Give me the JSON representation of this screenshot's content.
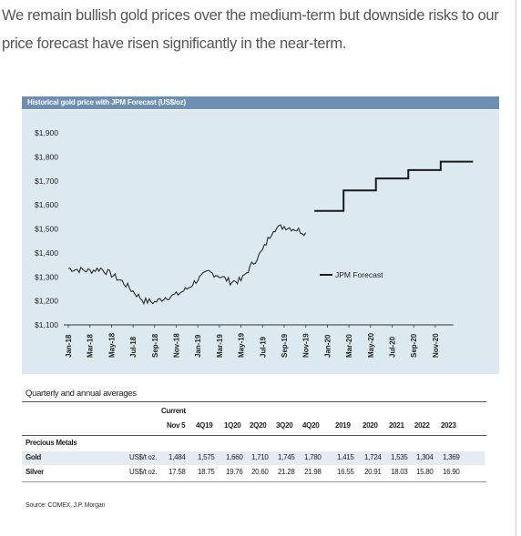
{
  "intro_text": "We remain bullish gold prices over the medium-term but downside risks to our price forecast have risen significantly in the near-term.",
  "chart_data": {
    "type": "line",
    "title": "Historical gold price with JPM Forecast (US$/oz)",
    "ylim": [
      1100,
      1900
    ],
    "y_ticks": [
      "$1,900",
      "$1,800",
      "$1,700",
      "$1,600",
      "$1,500",
      "$1,400",
      "$1,300",
      "$1,200",
      "$1,100"
    ],
    "x_tick_labels": [
      "Jan-18",
      "Mar-18",
      "May-18",
      "Jul-18",
      "Sep-18",
      "Nov-18",
      "Jan-19",
      "Mar-19",
      "May-19",
      "Jul-19",
      "Sep-19",
      "Nov-19",
      "Jan-20",
      "Mar-20",
      "May-20",
      "Jul-20",
      "Sep-20",
      "Nov-20"
    ],
    "grid": false,
    "legend_position": "right",
    "series": [
      {
        "name": "",
        "color": "#2a2a2a",
        "x": [
          "Jan-18",
          "Feb-18",
          "Mar-18",
          "Apr-18",
          "May-18",
          "Jun-18",
          "Jul-18",
          "Aug-18",
          "Sep-18",
          "Oct-18",
          "Nov-18",
          "Dec-18",
          "Jan-19",
          "Feb-19",
          "Mar-19",
          "Apr-19",
          "May-19",
          "Jun-19",
          "Jul-19",
          "Aug-19",
          "Sep-19",
          "Oct-19",
          "Nov-19"
        ],
        "values": [
          1335,
          1330,
          1325,
          1335,
          1310,
          1280,
          1240,
          1200,
          1195,
          1215,
          1225,
          1250,
          1290,
          1320,
          1305,
          1280,
          1285,
          1350,
          1410,
          1500,
          1510,
          1500,
          1484
        ]
      },
      {
        "name": "JPM Forecast",
        "color": "#1a1a1a",
        "x": [
          "4Q19",
          "1Q20",
          "2Q20",
          "3Q20",
          "4Q20"
        ],
        "values": [
          1575,
          1660,
          1710,
          1745,
          1780
        ]
      }
    ]
  },
  "table": {
    "title": "Quarterly and annual averages",
    "current_header": "Current",
    "columns": [
      "Nov 5",
      "4Q19",
      "1Q20",
      "2Q20",
      "3Q20",
      "4Q20",
      "2019",
      "2020",
      "2021",
      "2022",
      "2023"
    ],
    "section_label": "Precious Metals",
    "rows": [
      {
        "name": "Gold",
        "unit": "US$/t oz.",
        "values": [
          "1,484",
          "1,575",
          "1,660",
          "1,710",
          "1,745",
          "1,780",
          "1,415",
          "1,724",
          "1,535",
          "1,304",
          "1,369"
        ]
      },
      {
        "name": "Silver",
        "unit": "US$/t oz.",
        "values": [
          "17.58",
          "18.75",
          "19.76",
          "20.60",
          "21.28",
          "21.98",
          "16.55",
          "20.91",
          "18.03",
          "15.80",
          "16.90"
        ]
      }
    ]
  },
  "source": "Source: COMEX, J.P. Morgan"
}
